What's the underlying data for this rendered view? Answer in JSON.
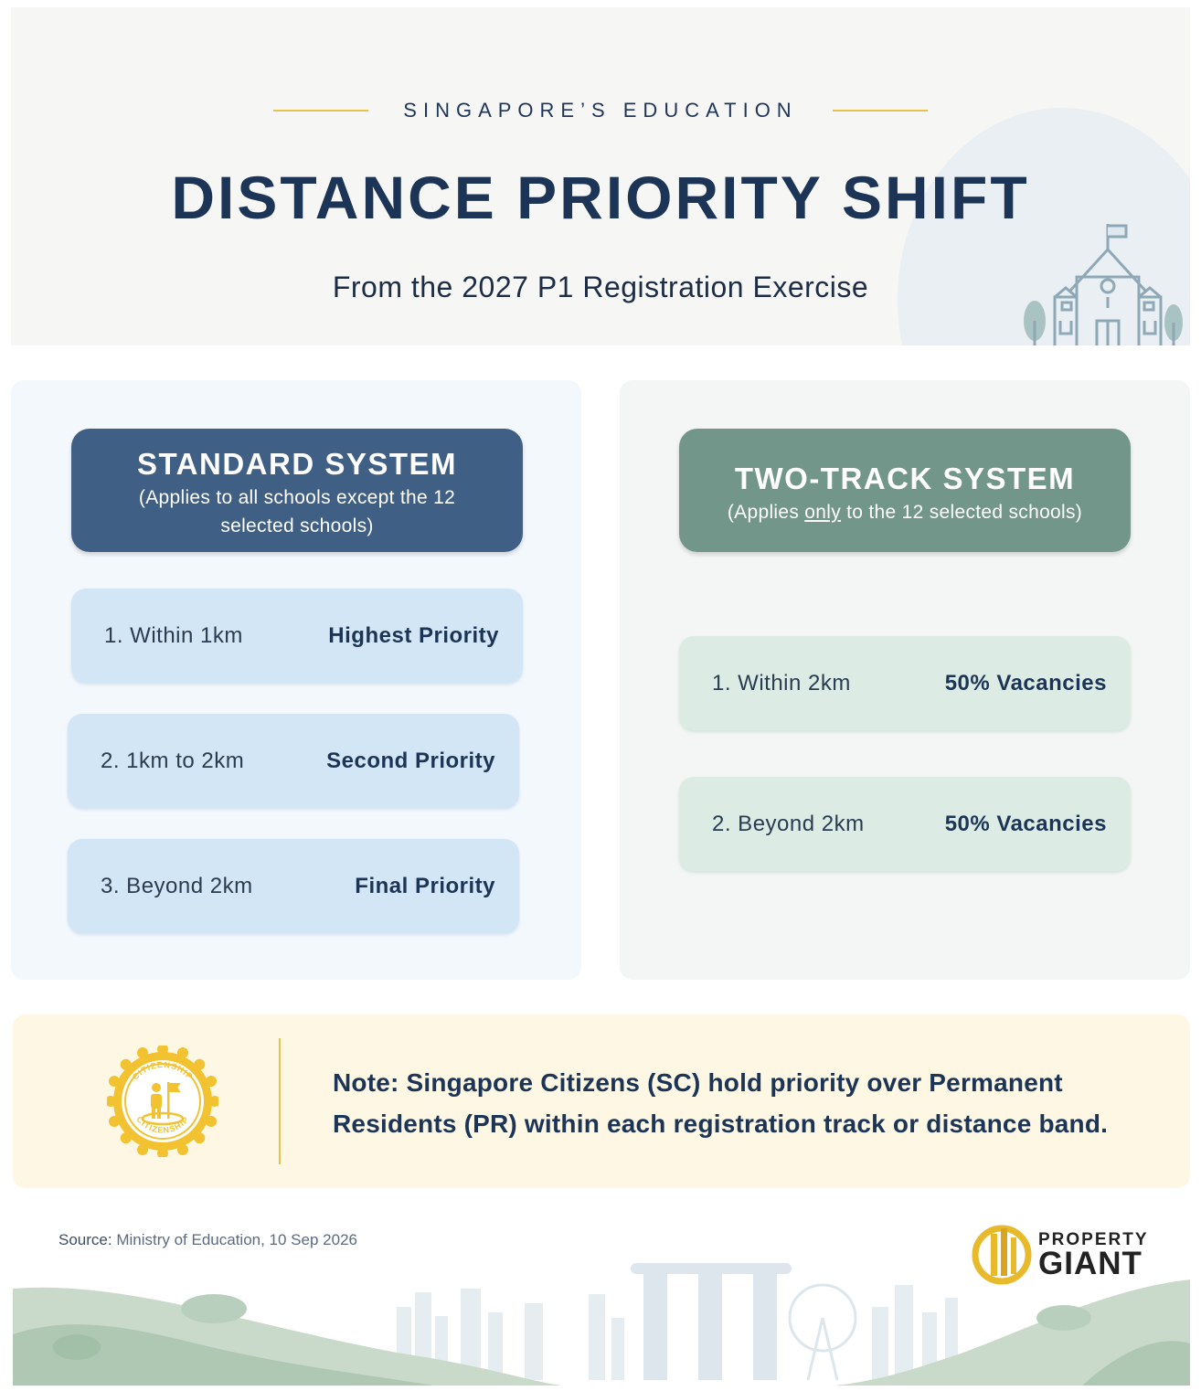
{
  "header": {
    "kicker": "SINGAPORE’S EDUCATION",
    "title": "DISTANCE PRIORITY SHIFT",
    "subtitle": "From the 2027 P1 Registration Exercise"
  },
  "standard": {
    "title": "STANDARD SYSTEM",
    "subtitle": "(Applies to all schools except the 12 selected schools)",
    "rows": [
      {
        "label": "1. Within 1km",
        "value": "Highest Priority"
      },
      {
        "label": "2. 1km to 2km",
        "value": "Second Priority"
      },
      {
        "label": "3. Beyond 2km",
        "value": "Final Priority"
      }
    ]
  },
  "two_track": {
    "title": "TWO-TRACK SYSTEM",
    "subtitle_before": "(Applies ",
    "subtitle_emph": "only",
    "subtitle_after": " to the 12 selected schools)",
    "rows": [
      {
        "label": "1. Within 2km",
        "value": "50% Vacancies"
      },
      {
        "label": "2. Beyond 2km",
        "value": "50% Vacancies"
      }
    ]
  },
  "note": {
    "text": "Note: Singapore Citizens (SC) hold priority over Permanent Residents (PR) within each registration track or distance band.",
    "badge_text_top": "CITIZENSHIP",
    "badge_text_bottom": "CITIZENSHIP"
  },
  "footer": {
    "source_label": "Source:",
    "source_text": " Ministry of Education, 10 Sep 2026",
    "logo_top": "PROPERTY",
    "logo_bottom": "GIANT"
  },
  "colors": {
    "navy": "#1c3557",
    "standard_header": "#405f84",
    "two_track_header": "#72978a",
    "blue_row": "#d3e6f5",
    "green_row": "#dcece4",
    "gold": "#e7c24a",
    "note_bg": "#fdf7e4"
  },
  "icons": [
    "school-building-icon",
    "citizenship-badge-icon",
    "property-giant-logo-icon",
    "city-skyline-illustration"
  ]
}
